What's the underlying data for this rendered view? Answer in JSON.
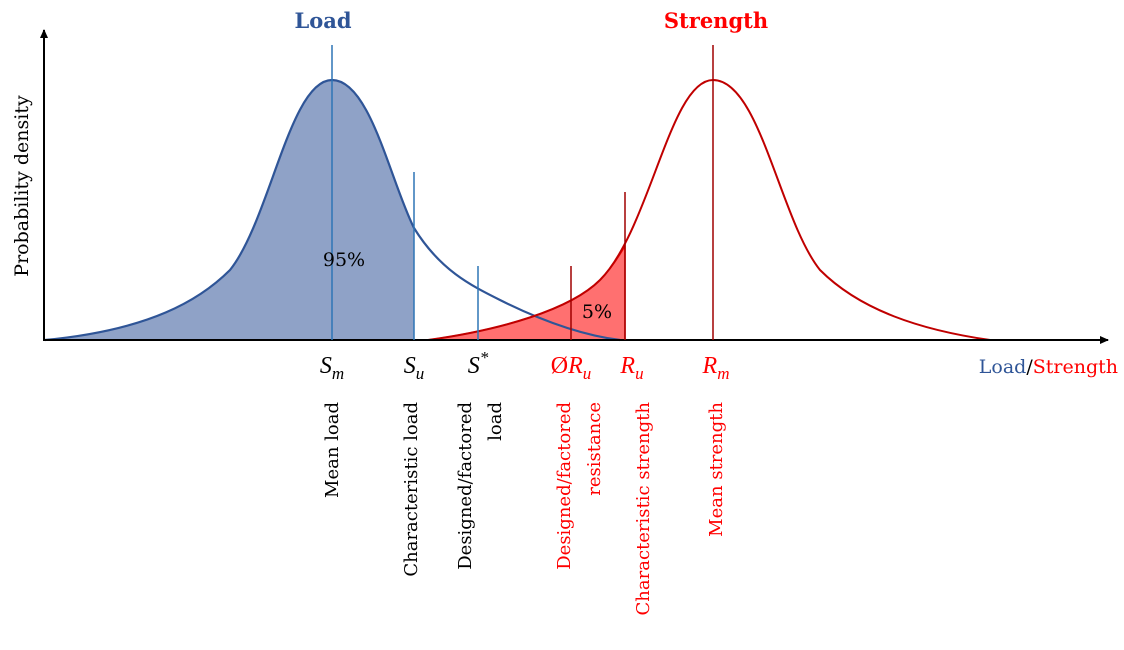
{
  "titles": {
    "load": "Load",
    "strength": "Strength"
  },
  "y_axis_label": "Probability density",
  "x_axis_label": {
    "load": "Load",
    "separator": "/",
    "strength": "Strength"
  },
  "percentages": {
    "load": "95%",
    "strength": "5%"
  },
  "symbols": [
    {
      "main": "S",
      "sub": "m"
    },
    {
      "main": "S",
      "sup": "*"
    },
    {
      "main": "S",
      "sub": "u"
    },
    {
      "prefix": "Ø",
      "main": "R",
      "sub": "u"
    },
    {
      "main": "R",
      "sub": "u"
    },
    {
      "main": "R",
      "sub": "m"
    }
  ],
  "descriptions": [
    [
      "Mean load"
    ],
    [
      "Characteristic load"
    ],
    [
      "Designed/factored",
      "load"
    ],
    [
      "Designed/factored",
      "resistance"
    ],
    [
      "Characteristic strength"
    ],
    [
      "Mean strength"
    ]
  ]
}
